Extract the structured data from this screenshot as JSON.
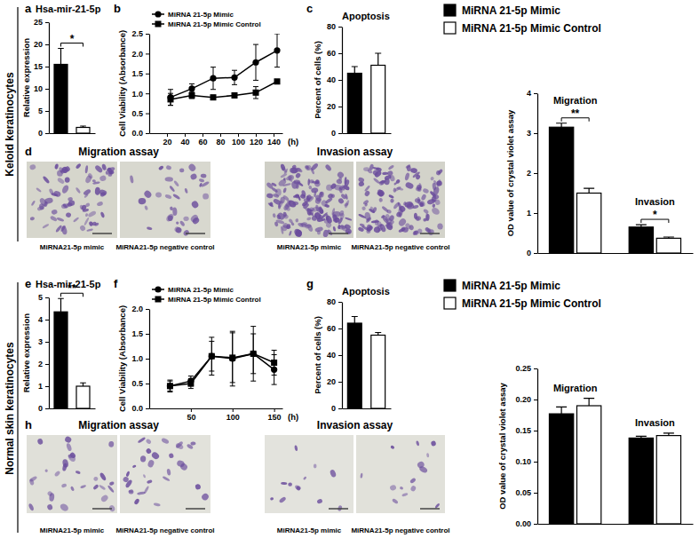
{
  "figure": {
    "row_labels": [
      "Keloid keratinocytes",
      "Normal skin keratinocytes"
    ],
    "image_panels": [
      {
        "panel": "d",
        "titles": [
          "Migration assay",
          "Invasion assay"
        ],
        "captions": [
          "MiRNA21-5p mimic",
          "MiRNA21-5p negative control",
          "MiRNA21-5p mimic",
          "MiRNA21-5p negative control"
        ]
      },
      {
        "panel": "h",
        "titles": [
          "Migration assay",
          "Invasion assay"
        ],
        "captions": [
          "MiRNA21-5p mimic",
          "MiRNA21-5p negative control",
          "MiRNA21-5p mimic",
          "MiRNA21-5p negative control"
        ]
      }
    ]
  },
  "chart_data": [
    {
      "type": "bar",
      "panel": "a",
      "title": "Hsa-mir-21-5p",
      "y_label": "Relative expression",
      "categories": [
        null
      ],
      "series": [
        {
          "color": "#000000",
          "values": [
            15.5
          ],
          "errors": [
            3.6
          ]
        },
        {
          "color": "#ffffff",
          "values": [
            1.3
          ],
          "errors": [
            0.3
          ]
        }
      ],
      "significance": [
        "*"
      ],
      "ylim": [
        0,
        25
      ],
      "yticks": [
        0,
        5,
        10,
        15,
        20,
        25
      ]
    },
    {
      "type": "line",
      "panel": "b",
      "x_label": "(h)",
      "y_label": "Cell Viability (Absorbance)",
      "x": [
        24,
        48,
        72,
        96,
        120,
        144
      ],
      "series": [
        {
          "name": "MiRNA 21-5p Mimic",
          "color": "#000000",
          "marker": "circle",
          "values": [
            0.9,
            1.12,
            1.38,
            1.4,
            1.78,
            2.08
          ],
          "errors": [
            0.2,
            0.12,
            0.28,
            0.18,
            0.45,
            0.42
          ]
        },
        {
          "name": "MiRNA 21-5p Mimic Control",
          "color": "#000000",
          "marker": "square",
          "values": [
            0.85,
            0.95,
            0.9,
            0.95,
            1.02,
            1.3
          ],
          "errors": [
            0.15,
            0.08,
            0.05,
            0.05,
            0.15,
            0.05
          ]
        }
      ],
      "xlim": [
        0,
        150
      ],
      "xticks": [
        20,
        40,
        60,
        80,
        100,
        120,
        140
      ],
      "ylim": [
        0,
        2.5
      ],
      "yticks": [
        {
          "value": 0,
          "label": "0.0"
        },
        0.5,
        {
          "value": 1,
          "label": "1.0"
        },
        1.5,
        {
          "value": 2,
          "label": "2.0"
        },
        2.5
      ],
      "legend": "top-left"
    },
    {
      "type": "bar",
      "panel": "c",
      "title": "Apoptosis",
      "y_label": "Percent of cells (%)",
      "categories": [
        null
      ],
      "series": [
        {
          "color": "#000000",
          "values": [
            45
          ],
          "errors": [
            5
          ]
        },
        {
          "color": "#ffffff",
          "values": [
            51
          ],
          "errors": [
            9
          ]
        }
      ],
      "ylim": [
        0,
        80
      ],
      "yticks": [
        0,
        20,
        40,
        60,
        80
      ]
    },
    {
      "type": "bar",
      "y_label": "OD value of crystal violet assay",
      "categories": [
        "Migration",
        "Invasion"
      ],
      "series": [
        {
          "name": "MiRNA 21-5p Mimic",
          "color": "#000000",
          "values": [
            3.15,
            0.65
          ],
          "errors": [
            0.1,
            0.06
          ]
        },
        {
          "name": "MiRNA 21-5p Mimic Control",
          "color": "#ffffff",
          "values": [
            1.5,
            0.37
          ],
          "errors": [
            0.12,
            0.03
          ]
        }
      ],
      "significance": [
        "**",
        "*"
      ],
      "ylim": [
        0,
        4
      ],
      "yticks": [
        0,
        1,
        2,
        3,
        4
      ],
      "legend": "top"
    },
    {
      "type": "bar",
      "panel": "e",
      "title": "Hsa-mir-21-5p",
      "y_label": "Relative expression",
      "categories": [
        null
      ],
      "series": [
        {
          "color": "#000000",
          "values": [
            4.35
          ],
          "errors": [
            0.6
          ]
        },
        {
          "color": "#ffffff",
          "values": [
            1.0
          ],
          "errors": [
            0.15
          ]
        }
      ],
      "significance": [
        "**"
      ],
      "ylim": [
        0,
        5
      ],
      "yticks": [
        0,
        1,
        2,
        3,
        4,
        5
      ]
    },
    {
      "type": "line",
      "panel": "f",
      "x_label": "(h)",
      "y_label": "Cell Viability (Absorbance)",
      "x": [
        25,
        50,
        75,
        100,
        125,
        150
      ],
      "series": [
        {
          "name": "MiRNA 21-5p Mimic",
          "color": "#000000",
          "marker": "circle",
          "values": [
            0.45,
            0.55,
            1.05,
            1.0,
            1.1,
            0.78
          ],
          "errors": [
            0.12,
            0.1,
            0.38,
            0.55,
            0.55,
            0.3
          ]
        },
        {
          "name": "MiRNA 21-5p Mimic Control",
          "color": "#000000",
          "marker": "square",
          "values": [
            0.45,
            0.5,
            1.05,
            1.02,
            1.1,
            0.92
          ],
          "errors": [
            0.1,
            0.1,
            0.3,
            0.5,
            0.4,
            0.25
          ]
        }
      ],
      "xlim": [
        0,
        160
      ],
      "xticks": [
        50,
        100,
        150
      ],
      "ylim": [
        0,
        2
      ],
      "yticks": [
        {
          "value": 0,
          "label": "0.0"
        },
        0.5,
        {
          "value": 1,
          "label": "1.0"
        },
        1.5,
        {
          "value": 2,
          "label": "2.0"
        }
      ],
      "legend": "top-left"
    },
    {
      "type": "bar",
      "panel": "g",
      "title": "Apoptosis",
      "y_label": "Percent of cells (%)",
      "categories": [
        null
      ],
      "series": [
        {
          "color": "#000000",
          "values": [
            64
          ],
          "errors": [
            5
          ]
        },
        {
          "color": "#ffffff",
          "values": [
            55
          ],
          "errors": [
            2
          ]
        }
      ],
      "ylim": [
        0,
        80
      ],
      "yticks": [
        0,
        20,
        40,
        60,
        80
      ]
    },
    {
      "type": "bar",
      "y_label": "OD value of crystal violet assay",
      "categories": [
        "Migration",
        "Invasion"
      ],
      "series": [
        {
          "name": "MiRNA 21-5p Mimic",
          "color": "#000000",
          "values": [
            0.177,
            0.138
          ],
          "errors": [
            0.011,
            0.003
          ]
        },
        {
          "name": "MiRNA 21-5p Mimic Control",
          "color": "#ffffff",
          "values": [
            0.19,
            0.142
          ],
          "errors": [
            0.012,
            0.004
          ]
        }
      ],
      "ylim": [
        0,
        0.25
      ],
      "yticks": [
        {
          "value": 0,
          "label": "0.00"
        },
        0.05,
        {
          "value": 0.1,
          "label": "0.10"
        },
        0.15,
        {
          "value": 0.2,
          "label": "0.20"
        },
        0.25
      ],
      "legend": "top"
    }
  ]
}
